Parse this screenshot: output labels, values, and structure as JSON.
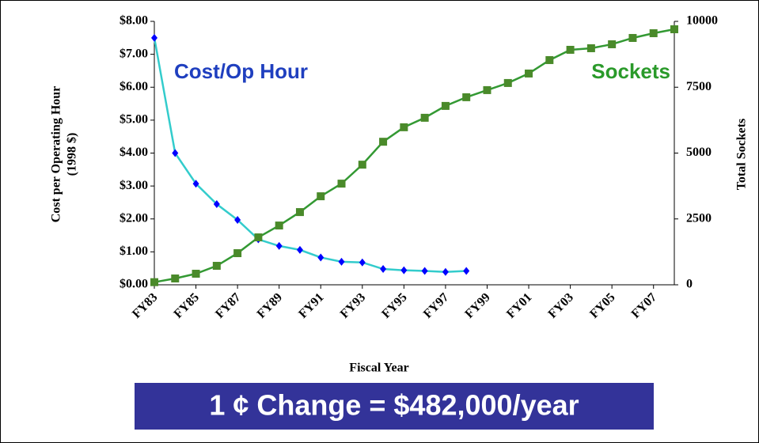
{
  "chart_data": {
    "type": "line",
    "y_label": [
      "Cost per Operating Hour",
      "(1998 $)"
    ],
    "y2_label": "Total Sockets",
    "x_label": "Fiscal Year",
    "annotations": [
      "Cost/Op Hour",
      "Sockets",
      "1 ¢ Change = $482,000/year"
    ],
    "categories": [
      "FY83",
      null,
      "FY85",
      null,
      "FY87",
      null,
      "FY89",
      null,
      "FY91",
      null,
      "FY93",
      null,
      "FY95",
      null,
      "FY97",
      null,
      "FY99",
      null,
      "FY01",
      null,
      "FY03",
      null,
      "FY05",
      null,
      "FY07",
      null
    ],
    "series": [
      {
        "name": "Cost/Op Hour",
        "color": "#33cccc",
        "marker_color": "#0000ff",
        "marker": "diamond",
        "values": [
          7.5,
          4.0,
          3.07,
          2.45,
          1.97,
          1.38,
          1.18,
          1.06,
          0.83,
          0.7,
          0.68,
          0.48,
          0.44,
          0.42,
          0.39,
          0.42,
          null,
          null,
          null,
          null,
          null,
          null,
          null,
          null,
          null,
          null
        ]
      },
      {
        "name": "Sockets",
        "color": "#339933",
        "marker_color": "#4a8a2a",
        "marker": "square",
        "axis": "y2",
        "values": [
          100,
          240,
          420,
          720,
          1200,
          1800,
          2250,
          2760,
          3360,
          3840,
          4560,
          5430,
          5980,
          6340,
          6790,
          7120,
          7390,
          7660,
          8020,
          8530,
          8920,
          8980,
          9130,
          9370,
          9550,
          9700
        ]
      }
    ],
    "ylim": [
      0,
      8
    ],
    "yticks": [
      {
        "value": 0,
        "label": "$0.00"
      },
      {
        "value": 1,
        "label": "$1.00"
      },
      {
        "value": 2,
        "label": "$2.00"
      },
      {
        "value": 3,
        "label": "$3.00"
      },
      {
        "value": 4,
        "label": "$4.00"
      },
      {
        "value": 5,
        "label": "$5.00"
      },
      {
        "value": 6,
        "label": "$6.00"
      },
      {
        "value": 7,
        "label": "$7.00"
      },
      {
        "value": 8,
        "label": "$8.00"
      }
    ],
    "y2lim": [
      0,
      10000
    ],
    "y2ticks": [
      0,
      2500,
      5000,
      7500,
      10000
    ],
    "grid": false
  }
}
